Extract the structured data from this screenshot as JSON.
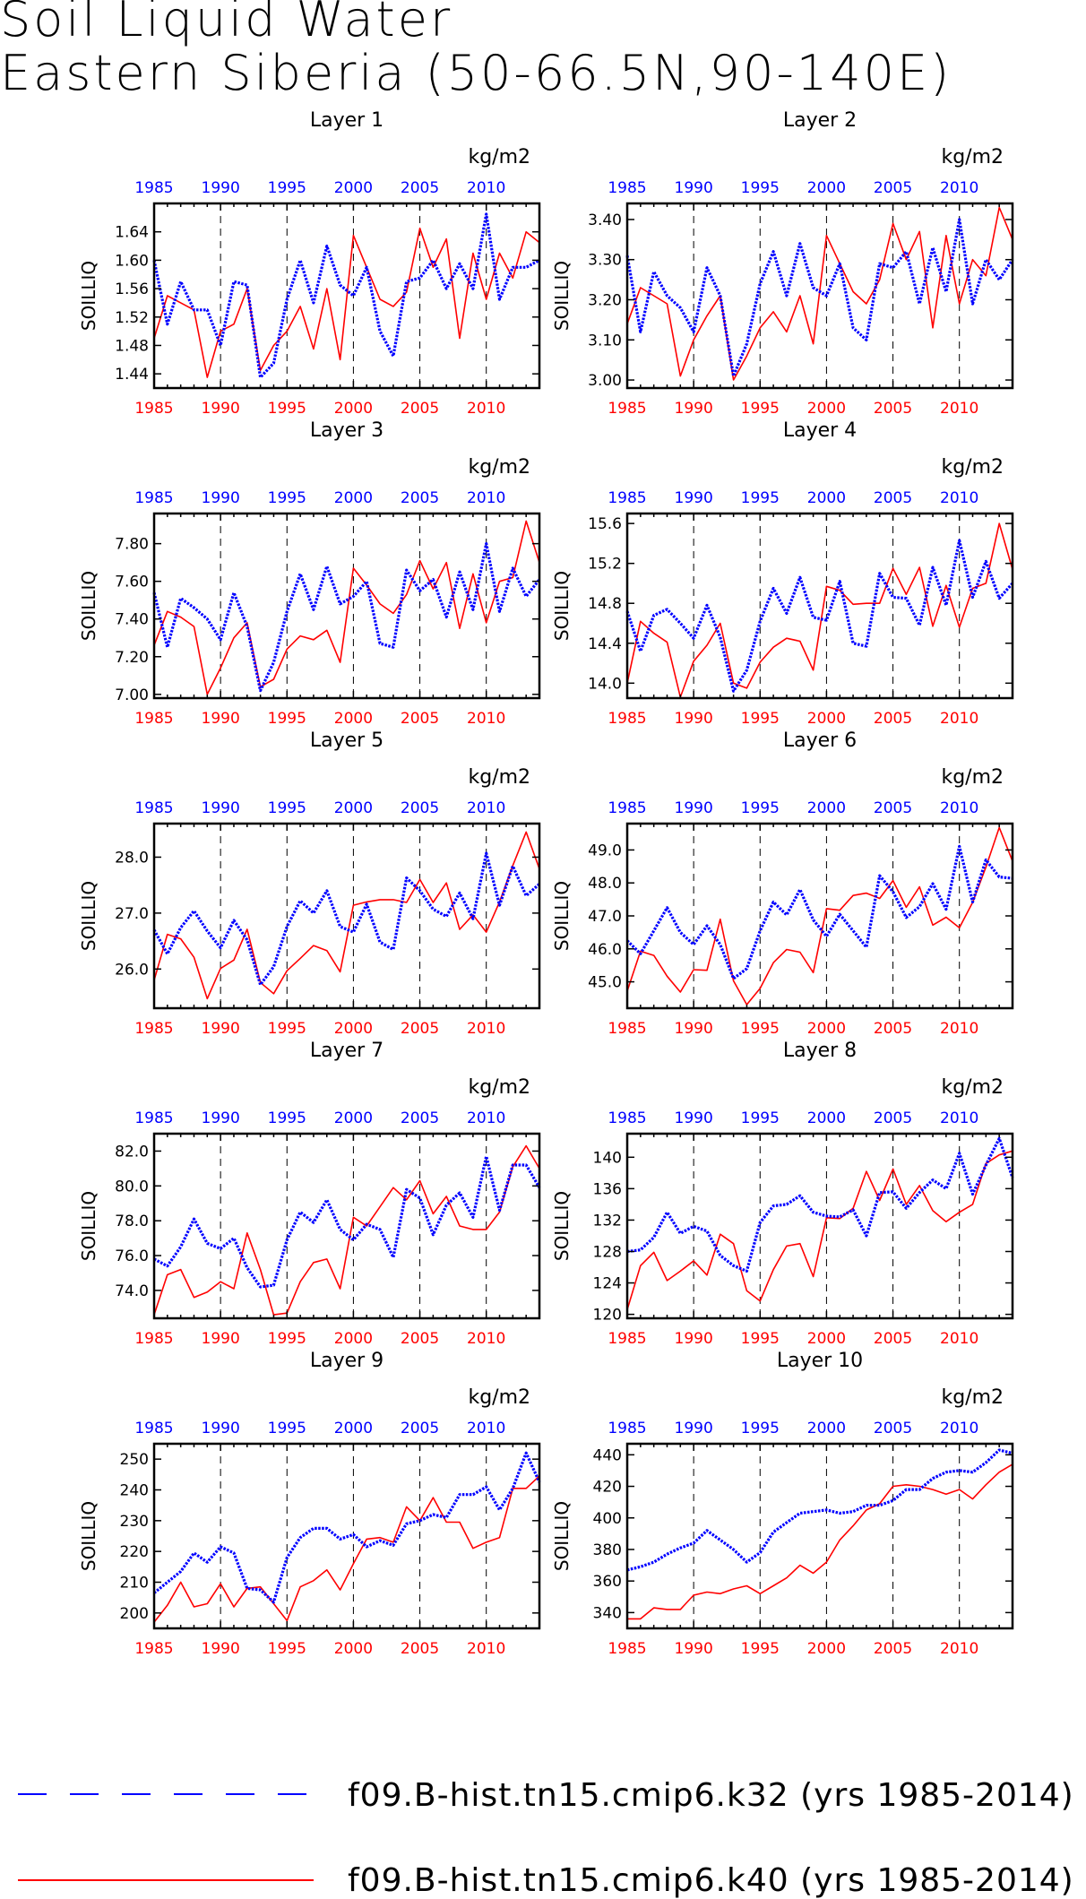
{
  "title": {
    "line1": "Soil Liquid Water",
    "line2": "Eastern Siberia (50-66.5N,90-140E)"
  },
  "legend": [
    {
      "label": "f09.B-hist.tn15.cmip6.k32 (yrs 1985-2014)",
      "color": "#0000ff",
      "style": "dashed"
    },
    {
      "label": "f09.B-hist.tn15.cmip6.k40 (yrs 1985-2014)",
      "color": "#ff0000",
      "style": "solid"
    }
  ],
  "colors": {
    "blue": "#0000ff",
    "red": "#ff0000"
  },
  "chart_data": [
    {
      "type": "line",
      "title": "Layer 1",
      "ylabel": "SOILLIQ",
      "unit": "kg/m2",
      "x_ticks": [
        1985,
        1990,
        1995,
        2000,
        2005,
        2010
      ],
      "xlim": [
        1985,
        2014
      ],
      "ylim": [
        1.42,
        1.68
      ],
      "y_ticks": [
        "1.44",
        "1.48",
        "1.52",
        "1.56",
        "1.60",
        "1.64"
      ],
      "grid_x": [
        1990,
        1995,
        2000,
        2005,
        2010
      ],
      "series": [
        {
          "color": "blue",
          "values": [
            1.6,
            1.51,
            1.57,
            1.53,
            1.53,
            1.48,
            1.57,
            1.565,
            1.435,
            1.455,
            1.545,
            1.6,
            1.54,
            1.62,
            1.565,
            1.55,
            1.59,
            1.5,
            1.465,
            1.57,
            1.575,
            1.6,
            1.56,
            1.595,
            1.56,
            1.665,
            1.545,
            1.59,
            1.59,
            1.6
          ]
        },
        {
          "color": "red",
          "values": [
            1.49,
            1.55,
            1.54,
            1.53,
            1.435,
            1.5,
            1.51,
            1.56,
            1.445,
            1.48,
            1.5,
            1.535,
            1.475,
            1.56,
            1.46,
            1.635,
            1.59,
            1.545,
            1.535,
            1.555,
            1.645,
            1.59,
            1.63,
            1.49,
            1.61,
            1.545,
            1.61,
            1.575,
            1.64,
            1.625
          ]
        }
      ]
    },
    {
      "type": "line",
      "title": "Layer 2",
      "ylabel": "SOILLIQ",
      "unit": "kg/m2",
      "x_ticks": [
        1985,
        1990,
        1995,
        2000,
        2005,
        2010
      ],
      "xlim": [
        1985,
        2014
      ],
      "ylim": [
        2.98,
        3.44
      ],
      "y_ticks": [
        "3.00",
        "3.10",
        "3.20",
        "3.30",
        "3.40"
      ],
      "grid_x": [
        1990,
        1995,
        2000,
        2005,
        2010
      ],
      "series": [
        {
          "color": "blue",
          "values": [
            3.31,
            3.12,
            3.27,
            3.21,
            3.18,
            3.12,
            3.28,
            3.21,
            3.01,
            3.09,
            3.24,
            3.32,
            3.21,
            3.34,
            3.23,
            3.21,
            3.29,
            3.13,
            3.1,
            3.29,
            3.28,
            3.32,
            3.19,
            3.33,
            3.22,
            3.4,
            3.19,
            3.3,
            3.25,
            3.3
          ]
        },
        {
          "color": "red",
          "values": [
            3.14,
            3.23,
            3.21,
            3.19,
            3.01,
            3.1,
            3.16,
            3.21,
            3.0,
            3.06,
            3.13,
            3.17,
            3.12,
            3.21,
            3.09,
            3.36,
            3.29,
            3.22,
            3.19,
            3.25,
            3.39,
            3.3,
            3.37,
            3.13,
            3.36,
            3.19,
            3.3,
            3.26,
            3.43,
            3.35
          ]
        }
      ]
    },
    {
      "type": "line",
      "title": "Layer 3",
      "ylabel": "SOILLIQ",
      "unit": "kg/m2",
      "x_ticks": [
        1985,
        1990,
        1995,
        2000,
        2005,
        2010
      ],
      "xlim": [
        1985,
        2014
      ],
      "ylim": [
        6.98,
        7.96
      ],
      "y_ticks": [
        "7.00",
        "7.20",
        "7.40",
        "7.60",
        "7.80"
      ],
      "grid_x": [
        1990,
        1995,
        2000,
        2005,
        2010
      ],
      "series": [
        {
          "color": "blue",
          "values": [
            7.54,
            7.25,
            7.51,
            7.46,
            7.4,
            7.29,
            7.54,
            7.36,
            7.02,
            7.17,
            7.44,
            7.64,
            7.45,
            7.68,
            7.48,
            7.52,
            7.6,
            7.27,
            7.25,
            7.66,
            7.55,
            7.61,
            7.41,
            7.65,
            7.45,
            7.8,
            7.44,
            7.67,
            7.52,
            7.61
          ]
        },
        {
          "color": "red",
          "values": [
            7.26,
            7.44,
            7.41,
            7.36,
            7.0,
            7.14,
            7.3,
            7.38,
            7.04,
            7.08,
            7.24,
            7.31,
            7.29,
            7.34,
            7.17,
            7.67,
            7.58,
            7.48,
            7.43,
            7.53,
            7.71,
            7.56,
            7.7,
            7.35,
            7.64,
            7.38,
            7.6,
            7.62,
            7.92,
            7.7
          ]
        }
      ]
    },
    {
      "type": "line",
      "title": "Layer 4",
      "ylabel": "SOILLIQ",
      "unit": "kg/m2",
      "x_ticks": [
        1985,
        1990,
        1995,
        2000,
        2005,
        2010
      ],
      "xlim": [
        1985,
        2014
      ],
      "ylim": [
        13.85,
        15.7
      ],
      "y_ticks": [
        "14.0",
        "14.4",
        "14.8",
        "15.2",
        "15.6"
      ],
      "grid_x": [
        1990,
        1995,
        2000,
        2005,
        2010
      ],
      "series": [
        {
          "color": "blue",
          "values": [
            14.72,
            14.32,
            14.68,
            14.74,
            14.6,
            14.45,
            14.78,
            14.46,
            13.92,
            14.13,
            14.62,
            14.95,
            14.7,
            15.06,
            14.66,
            14.63,
            15.02,
            14.4,
            14.37,
            15.1,
            14.86,
            14.85,
            14.58,
            15.16,
            14.78,
            15.43,
            14.86,
            15.22,
            14.85,
            15.0
          ]
        },
        {
          "color": "red",
          "values": [
            14.0,
            14.62,
            14.5,
            14.41,
            13.86,
            14.22,
            14.38,
            14.6,
            14.0,
            13.95,
            14.21,
            14.36,
            14.45,
            14.42,
            14.13,
            14.97,
            14.93,
            14.79,
            14.8,
            14.8,
            15.15,
            14.89,
            15.16,
            14.57,
            14.98,
            14.56,
            14.95,
            15.0,
            15.6,
            15.14
          ]
        }
      ]
    },
    {
      "type": "line",
      "title": "Layer 5",
      "ylabel": "SOILLIQ",
      "unit": "kg/m2",
      "x_ticks": [
        1985,
        1990,
        1995,
        2000,
        2005,
        2010
      ],
      "xlim": [
        1985,
        2014
      ],
      "ylim": [
        25.3,
        28.6
      ],
      "y_ticks": [
        "26.0",
        "27.0",
        "28.0"
      ],
      "grid_x": [
        1990,
        1995,
        2000,
        2005,
        2010
      ],
      "series": [
        {
          "color": "blue",
          "values": [
            26.7,
            26.27,
            26.74,
            27.04,
            26.68,
            26.38,
            26.87,
            26.52,
            25.72,
            26.04,
            26.76,
            27.22,
            27.0,
            27.4,
            26.76,
            26.66,
            27.16,
            26.48,
            26.35,
            27.63,
            27.4,
            27.07,
            26.94,
            27.36,
            26.9,
            28.07,
            27.14,
            27.84,
            27.31,
            27.52
          ]
        },
        {
          "color": "red",
          "values": [
            25.8,
            26.62,
            26.54,
            26.21,
            25.47,
            26.01,
            26.16,
            26.71,
            25.76,
            25.56,
            25.97,
            26.19,
            26.42,
            26.33,
            25.95,
            27.14,
            27.2,
            27.24,
            27.24,
            27.19,
            27.6,
            27.19,
            27.54,
            26.71,
            26.97,
            26.66,
            27.2,
            27.85,
            28.45,
            27.79
          ]
        }
      ]
    },
    {
      "type": "line",
      "title": "Layer 6",
      "ylabel": "SOILLIQ",
      "unit": "kg/m2",
      "x_ticks": [
        1985,
        1990,
        1995,
        2000,
        2005,
        2010
      ],
      "xlim": [
        1985,
        2014
      ],
      "ylim": [
        44.2,
        49.8
      ],
      "y_ticks": [
        "45.0",
        "46.0",
        "47.0",
        "48.0",
        "49.0"
      ],
      "grid_x": [
        1990,
        1995,
        2000,
        2005,
        2010
      ],
      "series": [
        {
          "color": "blue",
          "values": [
            46.25,
            45.85,
            46.55,
            47.25,
            46.5,
            46.13,
            46.7,
            46.13,
            45.1,
            45.4,
            46.55,
            47.42,
            47.03,
            47.8,
            46.88,
            46.38,
            47.05,
            46.55,
            46.05,
            48.22,
            47.73,
            46.95,
            47.28,
            47.98,
            47.2,
            49.11,
            47.42,
            48.7,
            48.18,
            48.14
          ]
        },
        {
          "color": "red",
          "values": [
            44.72,
            45.93,
            45.8,
            45.17,
            44.69,
            45.37,
            45.35,
            46.9,
            45.03,
            44.31,
            44.8,
            45.58,
            45.98,
            45.9,
            45.28,
            47.22,
            47.17,
            47.62,
            47.69,
            47.53,
            48.07,
            47.26,
            47.88,
            46.72,
            46.96,
            46.64,
            47.41,
            48.48,
            49.68,
            48.66
          ]
        }
      ]
    },
    {
      "type": "line",
      "title": "Layer 7",
      "ylabel": "SOILLIQ",
      "unit": "kg/m2",
      "x_ticks": [
        1985,
        1990,
        1995,
        2000,
        2005,
        2010
      ],
      "xlim": [
        1985,
        2014
      ],
      "ylim": [
        72.4,
        83.0
      ],
      "y_ticks": [
        "74.0",
        "76.0",
        "78.0",
        "80.0",
        "82.0"
      ],
      "grid_x": [
        1990,
        1995,
        2000,
        2005,
        2010
      ],
      "series": [
        {
          "color": "blue",
          "values": [
            75.8,
            75.4,
            76.5,
            78.1,
            76.7,
            76.4,
            77.0,
            75.3,
            74.2,
            74.3,
            76.9,
            78.5,
            77.9,
            79.2,
            77.5,
            76.9,
            77.8,
            77.5,
            75.9,
            79.8,
            79.3,
            77.2,
            78.9,
            79.6,
            78.2,
            81.7,
            78.6,
            81.2,
            81.2,
            79.9
          ]
        },
        {
          "color": "red",
          "values": [
            72.6,
            74.9,
            75.2,
            73.6,
            73.9,
            74.5,
            74.1,
            77.3,
            75.2,
            72.6,
            72.7,
            74.5,
            75.6,
            75.8,
            74.1,
            78.2,
            77.7,
            78.8,
            79.9,
            79.2,
            80.3,
            78.4,
            79.4,
            77.7,
            77.5,
            77.5,
            78.5,
            81.1,
            82.3,
            81.0
          ]
        }
      ]
    },
    {
      "type": "line",
      "title": "Layer 8",
      "ylabel": "SOILLIQ",
      "unit": "kg/m2",
      "x_ticks": [
        1985,
        1990,
        1995,
        2000,
        2005,
        2010
      ],
      "xlim": [
        1985,
        2014
      ],
      "ylim": [
        119.5,
        143.0
      ],
      "y_ticks": [
        "120",
        "124",
        "128",
        "132",
        "136",
        "140"
      ],
      "grid_x": [
        1990,
        1995,
        2000,
        2005,
        2010
      ],
      "series": [
        {
          "color": "blue",
          "values": [
            128.0,
            128.2,
            129.8,
            133.0,
            130.3,
            131.2,
            130.6,
            127.5,
            126.2,
            125.5,
            131.7,
            133.8,
            134.0,
            135.1,
            133.0,
            132.5,
            132.4,
            133.3,
            130.0,
            135.5,
            135.6,
            133.5,
            135.5,
            137.1,
            136.0,
            140.5,
            135.3,
            139.0,
            142.4,
            137.4
          ]
        },
        {
          "color": "red",
          "values": [
            120.6,
            126.2,
            127.9,
            124.3,
            125.5,
            126.8,
            125.0,
            130.2,
            129.0,
            123.0,
            121.7,
            125.7,
            128.7,
            129.0,
            124.8,
            132.3,
            132.2,
            133.5,
            138.2,
            134.5,
            138.5,
            134.0,
            136.4,
            133.2,
            131.8,
            133.0,
            134.0,
            139.2,
            140.3,
            140.8
          ]
        }
      ]
    },
    {
      "type": "line",
      "title": "Layer 9",
      "ylabel": "SOILLIQ",
      "unit": "kg/m2",
      "x_ticks": [
        1985,
        1990,
        1995,
        2000,
        2005,
        2010
      ],
      "xlim": [
        1985,
        2014
      ],
      "ylim": [
        195,
        255
      ],
      "y_ticks": [
        "200",
        "210",
        "220",
        "230",
        "240",
        "250"
      ],
      "grid_x": [
        1990,
        1995,
        2000,
        2005,
        2010
      ],
      "series": [
        {
          "color": "blue",
          "values": [
            206.5,
            210.0,
            213.5,
            219.5,
            216.5,
            221.5,
            219.5,
            208.0,
            207.5,
            203.5,
            218.0,
            224.5,
            227.5,
            227.5,
            224.0,
            225.5,
            221.5,
            223.5,
            222.0,
            229.0,
            230.0,
            232.0,
            231.0,
            238.5,
            238.5,
            241.0,
            233.5,
            240.5,
            252.0,
            242.5
          ]
        },
        {
          "color": "red",
          "values": [
            197.0,
            202.5,
            210.0,
            202.0,
            203.0,
            209.5,
            202.0,
            208.0,
            208.5,
            203.0,
            197.5,
            208.5,
            210.5,
            214.0,
            207.5,
            216.0,
            224.0,
            224.5,
            223.0,
            234.5,
            230.0,
            237.5,
            229.5,
            229.5,
            221.0,
            223.0,
            224.5,
            240.5,
            240.5,
            244.5
          ]
        }
      ]
    },
    {
      "type": "line",
      "title": "Layer 10",
      "ylabel": "SOILLIQ",
      "unit": "kg/m2",
      "x_ticks": [
        1985,
        1990,
        1995,
        2000,
        2005,
        2010
      ],
      "xlim": [
        1985,
        2014
      ],
      "ylim": [
        330,
        447
      ],
      "y_ticks": [
        "340",
        "360",
        "380",
        "400",
        "420",
        "440"
      ],
      "grid_x": [
        1990,
        1995,
        2000,
        2005,
        2010
      ],
      "series": [
        {
          "color": "blue",
          "values": [
            367.0,
            369.0,
            372.0,
            377.0,
            381.0,
            384.0,
            392.0,
            386.0,
            380.0,
            372.0,
            378.0,
            391.0,
            397.0,
            403.0,
            404.0,
            405.0,
            403.0,
            404.0,
            408.0,
            408.0,
            411.0,
            418.0,
            418.0,
            425.0,
            429.0,
            430.0,
            429.0,
            435.0,
            443.0,
            441.0
          ]
        },
        {
          "color": "red",
          "values": [
            336.0,
            336.0,
            343.0,
            342.0,
            342.0,
            351.0,
            353.0,
            352.0,
            355.0,
            357.0,
            352.0,
            357.0,
            362.0,
            370.0,
            365.0,
            372.0,
            386.0,
            395.0,
            405.0,
            409.0,
            420.0,
            421.0,
            420.0,
            418.0,
            415.0,
            418.0,
            412.0,
            421.0,
            429.0,
            434.0
          ]
        }
      ]
    }
  ]
}
